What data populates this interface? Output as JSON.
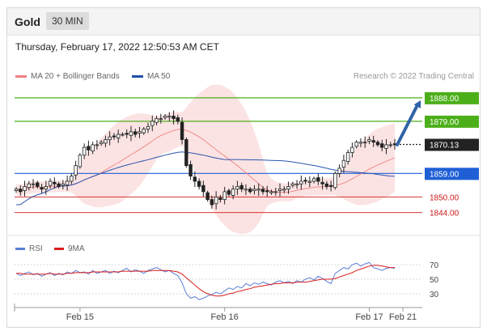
{
  "header": {
    "title": "Gold",
    "timeframe": "30 MIN"
  },
  "timestamp": "Thursday, February 17, 2022 12:50:53 AM CET",
  "legend": {
    "bb": {
      "label": "MA 20 + Bollinger Bands",
      "color": "#f08080"
    },
    "ma50": {
      "label": "MA 50",
      "color": "#1f4fa8"
    }
  },
  "credit": "Research © 2022 Trading Central",
  "rsi_legend": {
    "rsi": {
      "label": "RSI",
      "color": "#5b7fd6"
    },
    "ma9": {
      "label": "9MA",
      "color": "#d91c1c"
    }
  },
  "chart_data": {
    "type": "candlestick",
    "instrument": "Gold",
    "timeframe": "30 MIN",
    "x_ticks": [
      "Feb 15",
      "Feb 16",
      "Feb 17",
      "Feb 21"
    ],
    "levels": [
      {
        "value": "1888.00",
        "kind": "resistance",
        "color": "#4caf1a"
      },
      {
        "value": "1879.00",
        "kind": "resistance",
        "color": "#4caf1a"
      },
      {
        "value": "1870.13",
        "kind": "last",
        "color": "#222222"
      },
      {
        "value": "1859.00",
        "kind": "pivot",
        "color": "#1f5fd6"
      },
      {
        "value": "1850.00",
        "kind": "support",
        "color": "#d01818"
      },
      {
        "value": "1844.00",
        "kind": "support",
        "color": "#d01818"
      }
    ],
    "ylim": [
      1838,
      1892
    ],
    "closes": [
      1853,
      1852,
      1854,
      1855,
      1855,
      1854,
      1853,
      1854,
      1856,
      1855,
      1854,
      1855,
      1856,
      1858,
      1862,
      1866,
      1869,
      1868,
      1870,
      1870,
      1871,
      1872,
      1873,
      1873,
      1874,
      1874,
      1874,
      1875,
      1874,
      1875,
      1876,
      1877,
      1879,
      1880,
      1880,
      1881,
      1881,
      1880,
      1879,
      1872,
      1862,
      1858,
      1856,
      1854,
      1852,
      1849,
      1847,
      1850,
      1849,
      1852,
      1851,
      1853,
      1854,
      1853,
      1853,
      1852,
      1853,
      1853,
      1852,
      1852,
      1852,
      1852,
      1853,
      1853,
      1854,
      1855,
      1855,
      1856,
      1856,
      1856,
      1857,
      1856,
      1855,
      1854,
      1854,
      1859,
      1861,
      1864,
      1867,
      1869,
      1871,
      1871,
      1871,
      1872,
      1871,
      1870,
      1869,
      1870,
      1870,
      1870
    ],
    "rsi": {
      "levels": [
        70,
        50,
        30
      ],
      "rsi": [
        58,
        55,
        58,
        60,
        56,
        58,
        54,
        57,
        59,
        55,
        58,
        56,
        60,
        58,
        62,
        59,
        60,
        57,
        62,
        58,
        60,
        62,
        58,
        61,
        59,
        62,
        65,
        60,
        63,
        61,
        58,
        62,
        64,
        66,
        63,
        60,
        62,
        58,
        55,
        45,
        30,
        24,
        26,
        22,
        24,
        27,
        29,
        32,
        30,
        34,
        38,
        36,
        40,
        38,
        44,
        41,
        45,
        43,
        46,
        44,
        42,
        46,
        48,
        45,
        47,
        44,
        48,
        46,
        50,
        52,
        49,
        54,
        51,
        47,
        44,
        58,
        62,
        66,
        64,
        70,
        72,
        68,
        71,
        73,
        66,
        64,
        62,
        65,
        66,
        65
      ],
      "ma9": [
        58,
        58,
        57,
        57,
        57,
        57,
        57,
        57,
        58,
        57,
        57,
        57,
        58,
        58,
        59,
        59,
        59,
        59,
        60,
        60,
        60,
        60,
        60,
        60,
        60,
        61,
        61,
        61,
        61,
        61,
        61,
        61,
        62,
        62,
        62,
        62,
        62,
        61,
        60,
        57,
        52,
        47,
        42,
        37,
        33,
        30,
        28,
        27,
        27,
        28,
        30,
        31,
        33,
        34,
        36,
        37,
        39,
        40,
        41,
        42,
        43,
        44,
        44,
        45,
        45,
        45,
        46,
        46,
        46,
        47,
        48,
        49,
        50,
        50,
        50,
        51,
        53,
        55,
        57,
        59,
        62,
        64,
        66,
        68,
        69,
        69,
        68,
        67,
        66,
        66
      ]
    }
  }
}
